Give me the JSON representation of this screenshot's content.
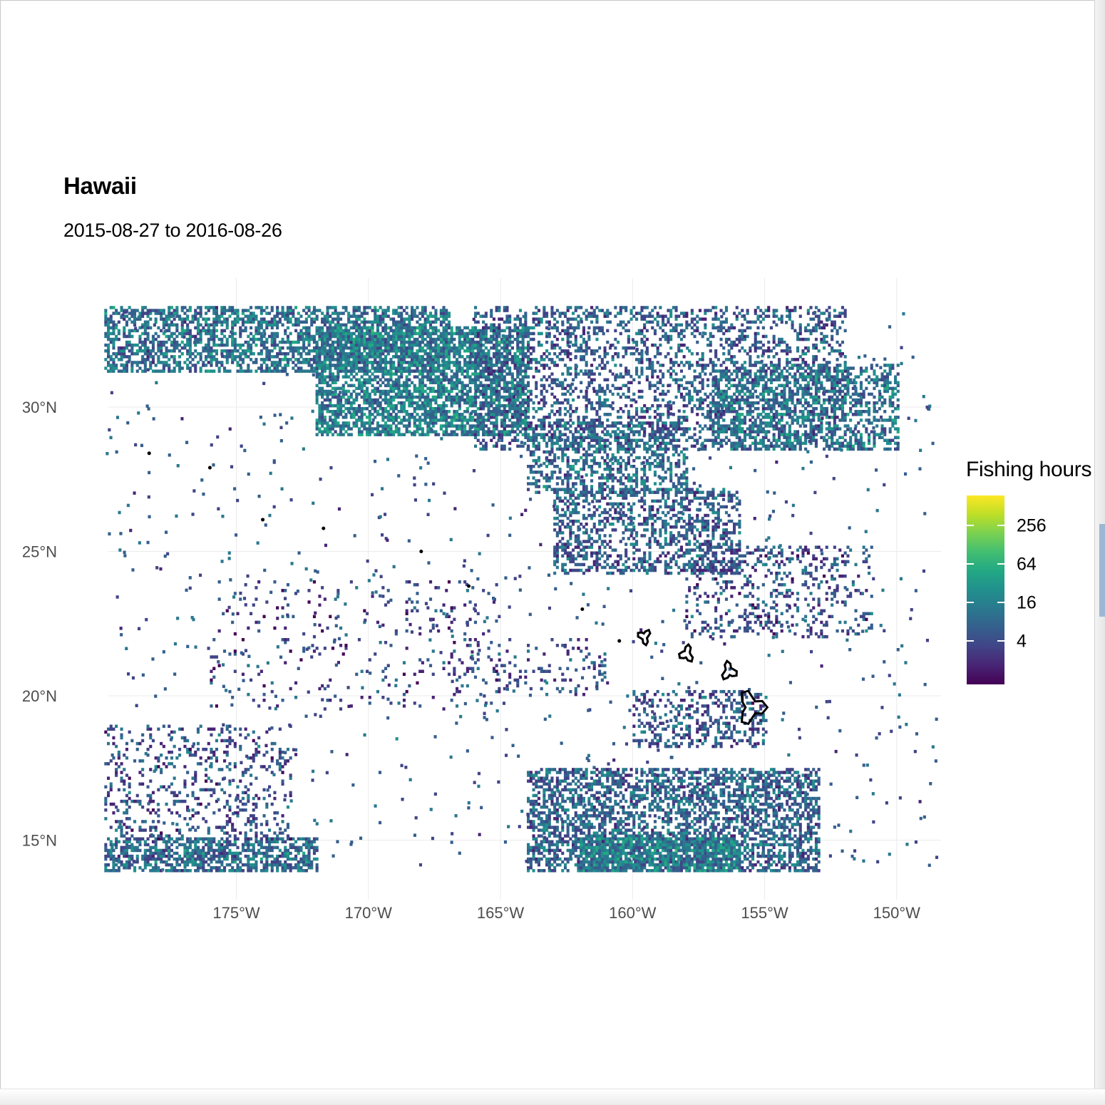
{
  "title": "Hawaii",
  "subtitle": "2015-08-27 to 2016-08-26",
  "legend": {
    "title": "Fishing hours",
    "ticks": [
      "256",
      "64",
      "16",
      "4"
    ],
    "colors": [
      "#440154",
      "#482475",
      "#414487",
      "#355f8d",
      "#2a788e",
      "#21908d",
      "#22a884",
      "#42be71",
      "#7ad151",
      "#bddf26",
      "#fde725"
    ]
  },
  "axes": {
    "x_ticks": [
      "175°W",
      "170°W",
      "165°W",
      "160°W",
      "155°W",
      "150°W"
    ],
    "y_ticks": [
      "30°N",
      "25°N",
      "20°N",
      "15°N"
    ]
  },
  "chart_data": {
    "type": "heatmap",
    "title": "Hawaii",
    "subtitle": "2015-08-27 to 2016-08-26",
    "colorbar_label": "Fishing hours",
    "colorbar_scale": "log2",
    "colorbar_ticks": [
      4,
      16,
      64,
      256
    ],
    "x_ticks": [
      -175,
      -170,
      -165,
      -160,
      -155,
      -150
    ],
    "y_ticks": [
      30,
      25,
      20,
      15
    ],
    "xlim": [
      -180,
      -148.4
    ],
    "ylim": [
      13.9,
      33.5
    ],
    "grid": true,
    "legend_position": "right",
    "regions": [
      {
        "lon": [
          -180,
          -167
        ],
        "lat": [
          31.2,
          33.5
        ],
        "level": 3.2,
        "density": 0.55
      },
      {
        "lon": [
          -172,
          -164
        ],
        "lat": [
          29.0,
          32.8
        ],
        "level": 3.6,
        "density": 0.65
      },
      {
        "lon": [
          -166,
          -152
        ],
        "lat": [
          28.5,
          33.5
        ],
        "level": 2.6,
        "density": 0.32
      },
      {
        "lon": [
          -164,
          -158
        ],
        "lat": [
          27.0,
          29.5
        ],
        "level": 3.0,
        "density": 0.38
      },
      {
        "lon": [
          -157,
          -150
        ],
        "lat": [
          28.5,
          31.5
        ],
        "level": 3.3,
        "density": 0.42
      },
      {
        "lon": [
          -163,
          -156
        ],
        "lat": [
          24.2,
          27.2
        ],
        "level": 2.6,
        "density": 0.4
      },
      {
        "lon": [
          -158,
          -151
        ],
        "lat": [
          22.0,
          25.2
        ],
        "level": 2.2,
        "density": 0.2
      },
      {
        "lon": [
          -160,
          -155
        ],
        "lat": [
          18.2,
          20.2
        ],
        "level": 2.4,
        "density": 0.32
      },
      {
        "lon": [
          -164,
          -153
        ],
        "lat": [
          13.9,
          17.5
        ],
        "level": 2.8,
        "density": 0.52
      },
      {
        "lon": [
          -162,
          -156
        ],
        "lat": [
          13.9,
          15.0
        ],
        "level": 3.6,
        "density": 0.78
      },
      {
        "lon": [
          -180,
          -172
        ],
        "lat": [
          13.9,
          15.0
        ],
        "level": 3.0,
        "density": 0.6
      },
      {
        "lon": [
          -180,
          -173
        ],
        "lat": [
          15.0,
          19.0
        ],
        "level": 2.2,
        "density": 0.18
      },
      {
        "lon": [
          -176,
          -165
        ],
        "lat": [
          19.5,
          24.0
        ],
        "level": 1.8,
        "density": 0.05
      },
      {
        "lon": [
          -167,
          -161
        ],
        "lat": [
          20.0,
          22.0
        ],
        "level": 2.0,
        "density": 0.1
      }
    ],
    "islands": [
      {
        "name": "",
        "lon": -157.95,
        "lat": 21.45
      },
      {
        "name": "",
        "lon": -159.55,
        "lat": 22.05
      },
      {
        "name": "",
        "lon": -156.35,
        "lat": 20.85
      },
      {
        "name": "",
        "lon": -155.5,
        "lat": 19.6
      }
    ]
  }
}
